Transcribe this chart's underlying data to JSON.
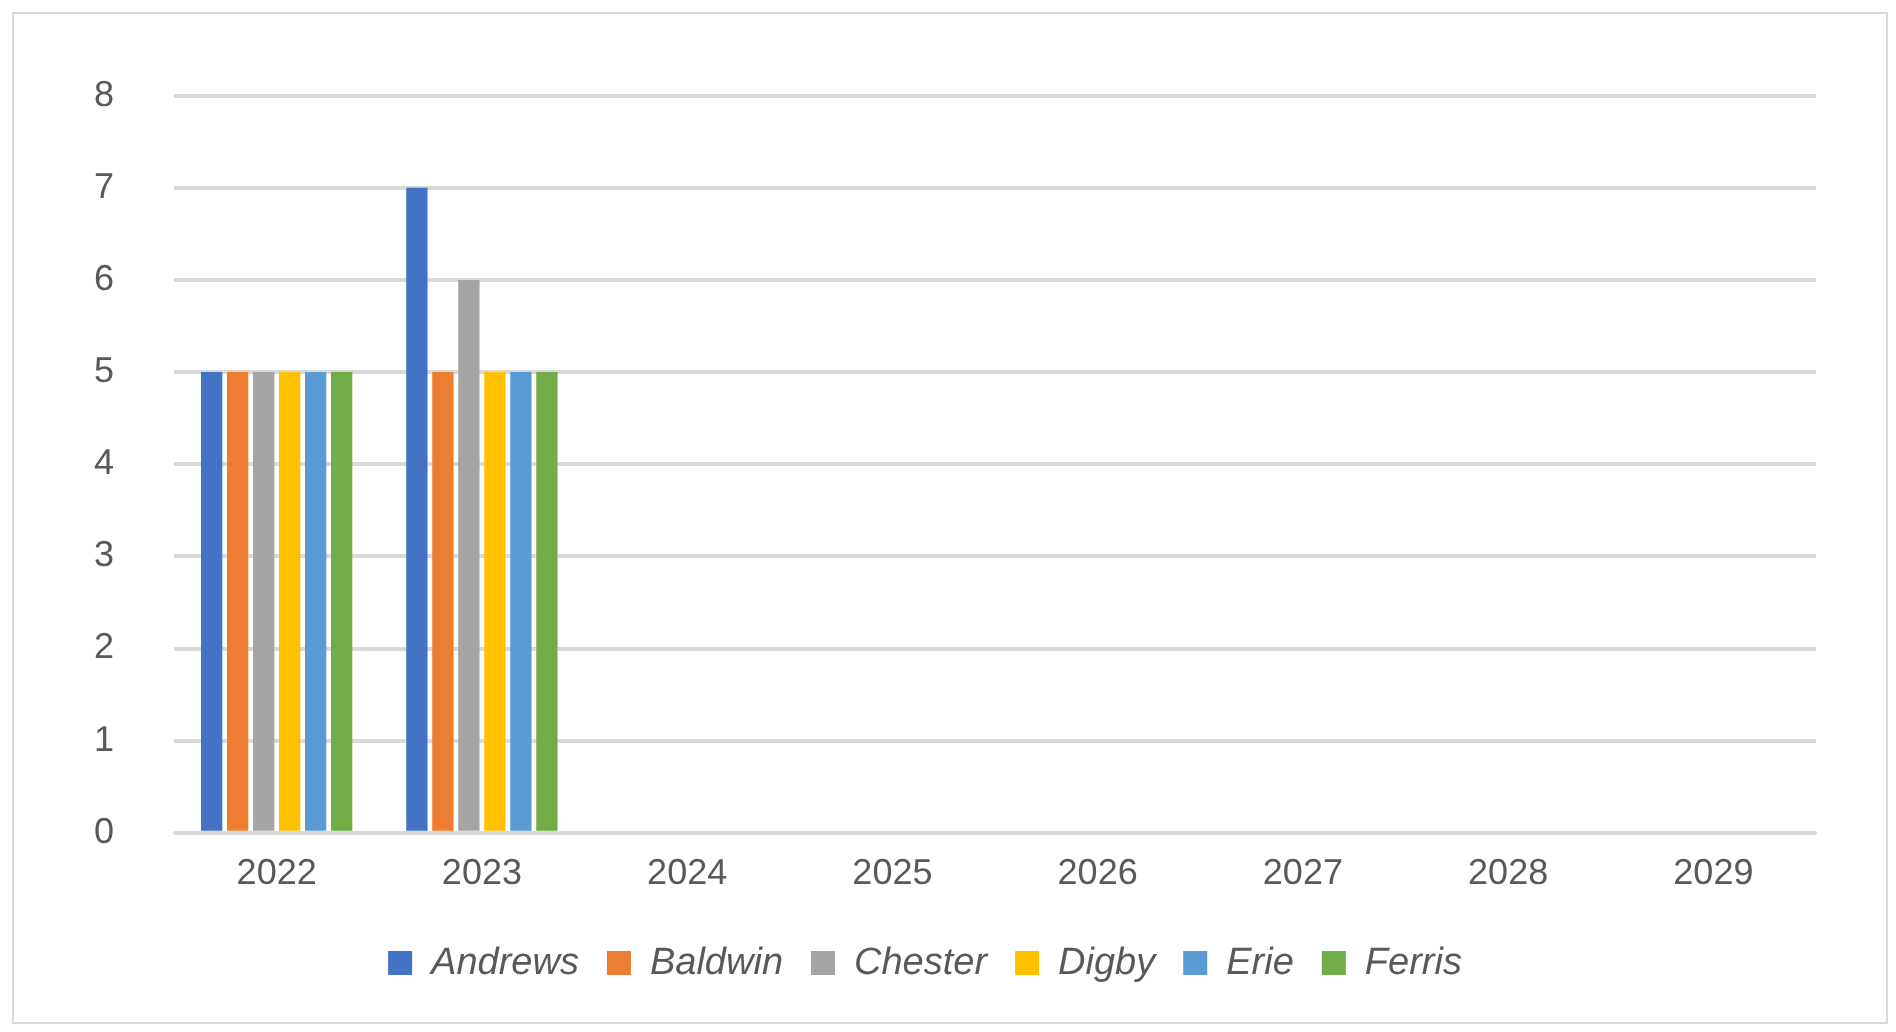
{
  "chart_data": {
    "type": "bar",
    "categories": [
      "2022",
      "2023",
      "2024",
      "2025",
      "2026",
      "2027",
      "2028",
      "2029"
    ],
    "series": [
      {
        "name": "Andrews",
        "color": "#4472c4",
        "values": [
          5,
          7,
          null,
          null,
          null,
          null,
          null,
          null
        ]
      },
      {
        "name": "Baldwin",
        "color": "#ed7d31",
        "values": [
          5,
          5,
          null,
          null,
          null,
          null,
          null,
          null
        ]
      },
      {
        "name": "Chester",
        "color": "#a5a5a5",
        "values": [
          5,
          6,
          null,
          null,
          null,
          null,
          null,
          null
        ]
      },
      {
        "name": "Digby",
        "color": "#ffc000",
        "values": [
          5,
          5,
          null,
          null,
          null,
          null,
          null,
          null
        ]
      },
      {
        "name": "Erie",
        "color": "#5b9bd5",
        "values": [
          5,
          5,
          null,
          null,
          null,
          null,
          null,
          null
        ]
      },
      {
        "name": "Ferris",
        "color": "#70ad47",
        "values": [
          5,
          5,
          null,
          null,
          null,
          null,
          null,
          null
        ]
      }
    ],
    "ylim": [
      0,
      8
    ],
    "yticks": [
      0,
      1,
      2,
      3,
      4,
      5,
      6,
      7,
      8
    ],
    "grid": "y",
    "legend": "bottom"
  }
}
